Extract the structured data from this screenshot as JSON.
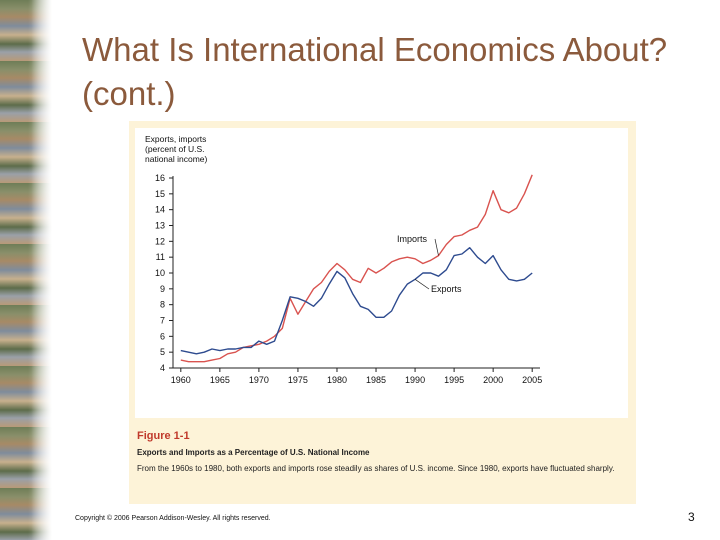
{
  "slide": {
    "title": "What Is International Economics About? (cont.)",
    "copyright": "Copyright © 2006 Pearson Addison-Wesley. All rights reserved.",
    "page_number": "3"
  },
  "figure": {
    "number": "Figure 1-1",
    "title": "Exports and Imports as a Percentage of U.S. National Income",
    "text": "From the 1960s to 1980, both exports and imports rose steadily as shares of U.S. income. Since 1980, exports have fluctuated sharply."
  },
  "colors": {
    "imports": "#d9534f",
    "exports": "#2e4b8f",
    "title": "#8b5a3c",
    "figure_number": "#c0392b",
    "panel": "#fdf3d8"
  },
  "chart_data": {
    "type": "line",
    "ylabel_lines": [
      "Exports, imports",
      "(percent of U.S.",
      "national income)"
    ],
    "xlim": [
      1959,
      2006
    ],
    "ylim": [
      4,
      16
    ],
    "x_ticks": [
      1960,
      1965,
      1970,
      1975,
      1980,
      1985,
      1990,
      1995,
      2000,
      2005
    ],
    "y_ticks": [
      4,
      5,
      6,
      7,
      8,
      9,
      10,
      11,
      12,
      13,
      14,
      15,
      16
    ],
    "grid": false,
    "series": [
      {
        "name": "Imports",
        "color": "#d9534f",
        "points": [
          [
            1960,
            4.5
          ],
          [
            1961,
            4.4
          ],
          [
            1962,
            4.4
          ],
          [
            1963,
            4.4
          ],
          [
            1964,
            4.5
          ],
          [
            1965,
            4.6
          ],
          [
            1966,
            4.9
          ],
          [
            1967,
            5.0
          ],
          [
            1968,
            5.3
          ],
          [
            1969,
            5.4
          ],
          [
            1970,
            5.5
          ],
          [
            1971,
            5.7
          ],
          [
            1972,
            6.0
          ],
          [
            1973,
            6.5
          ],
          [
            1974,
            8.4
          ],
          [
            1975,
            7.4
          ],
          [
            1976,
            8.2
          ],
          [
            1977,
            9.0
          ],
          [
            1978,
            9.4
          ],
          [
            1979,
            10.1
          ],
          [
            1980,
            10.6
          ],
          [
            1981,
            10.2
          ],
          [
            1982,
            9.6
          ],
          [
            1983,
            9.4
          ],
          [
            1984,
            10.3
          ],
          [
            1985,
            10.0
          ],
          [
            1986,
            10.3
          ],
          [
            1987,
            10.7
          ],
          [
            1988,
            10.9
          ],
          [
            1989,
            11.0
          ],
          [
            1990,
            10.9
          ],
          [
            1991,
            10.6
          ],
          [
            1992,
            10.8
          ],
          [
            1993,
            11.1
          ],
          [
            1994,
            11.8
          ],
          [
            1995,
            12.3
          ],
          [
            1996,
            12.4
          ],
          [
            1997,
            12.7
          ],
          [
            1998,
            12.9
          ],
          [
            1999,
            13.7
          ],
          [
            2000,
            15.2
          ],
          [
            2001,
            14.0
          ],
          [
            2002,
            13.8
          ],
          [
            2003,
            14.1
          ],
          [
            2004,
            15.0
          ],
          [
            2005,
            16.2
          ]
        ]
      },
      {
        "name": "Exports",
        "color": "#2e4b8f",
        "points": [
          [
            1960,
            5.1
          ],
          [
            1961,
            5.0
          ],
          [
            1962,
            4.9
          ],
          [
            1963,
            5.0
          ],
          [
            1964,
            5.2
          ],
          [
            1965,
            5.1
          ],
          [
            1966,
            5.2
          ],
          [
            1967,
            5.2
          ],
          [
            1968,
            5.3
          ],
          [
            1969,
            5.3
          ],
          [
            1970,
            5.7
          ],
          [
            1971,
            5.5
          ],
          [
            1972,
            5.7
          ],
          [
            1973,
            7.0
          ],
          [
            1974,
            8.5
          ],
          [
            1975,
            8.4
          ],
          [
            1976,
            8.2
          ],
          [
            1977,
            7.9
          ],
          [
            1978,
            8.4
          ],
          [
            1979,
            9.3
          ],
          [
            1980,
            10.1
          ],
          [
            1981,
            9.7
          ],
          [
            1982,
            8.7
          ],
          [
            1983,
            7.9
          ],
          [
            1984,
            7.7
          ],
          [
            1985,
            7.2
          ],
          [
            1986,
            7.2
          ],
          [
            1987,
            7.6
          ],
          [
            1988,
            8.6
          ],
          [
            1989,
            9.3
          ],
          [
            1990,
            9.6
          ],
          [
            1991,
            10.0
          ],
          [
            1992,
            10.0
          ],
          [
            1993,
            9.8
          ],
          [
            1994,
            10.2
          ],
          [
            1995,
            11.1
          ],
          [
            1996,
            11.2
          ],
          [
            1997,
            11.6
          ],
          [
            1998,
            11.0
          ],
          [
            1999,
            10.6
          ],
          [
            2000,
            11.1
          ],
          [
            2001,
            10.2
          ],
          [
            2002,
            9.6
          ],
          [
            2003,
            9.5
          ],
          [
            2004,
            9.6
          ],
          [
            2005,
            10.0
          ]
        ]
      }
    ]
  }
}
